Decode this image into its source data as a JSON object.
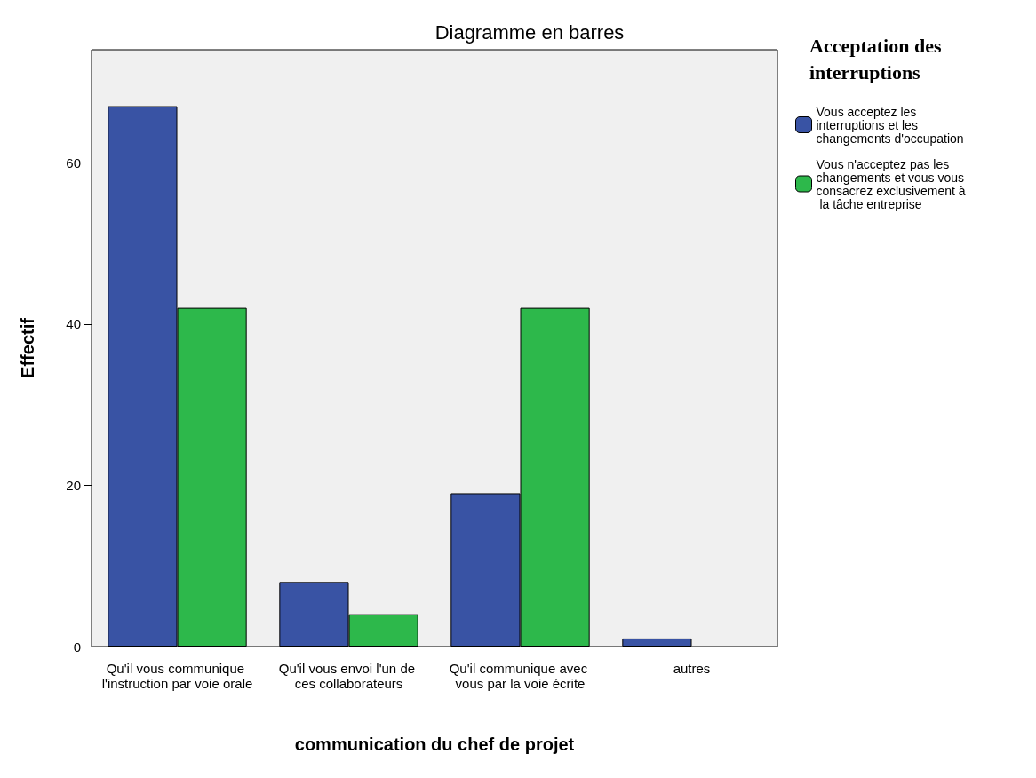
{
  "chart_data": {
    "type": "bar",
    "title": "Diagramme en barres",
    "xlabel": "communication du chef de projet",
    "ylabel": "Effectif",
    "legend_title": "Acceptation des interruptions",
    "categories": [
      "Qu'il vous communique l'instruction par voie orale",
      "Qu'il vous envoi l'un de ces collaborateurs",
      "Qu'il communique avec vous par la voie écrite",
      "autres"
    ],
    "series": [
      {
        "name": "Vous acceptez les interruptions et les changements d'occupation",
        "color": "#3953a4",
        "values": [
          67,
          8,
          19,
          1
        ]
      },
      {
        "name": "Vous n'acceptez pas les changements et vous vous consacrez exclusivement à la tâche entreprise",
        "color": "#2db84b",
        "values": [
          42,
          4,
          42,
          0
        ]
      }
    ],
    "ylim": [
      0,
      74
    ],
    "yticks": [
      0,
      20,
      40,
      60
    ],
    "grid": false,
    "legend": "right"
  }
}
